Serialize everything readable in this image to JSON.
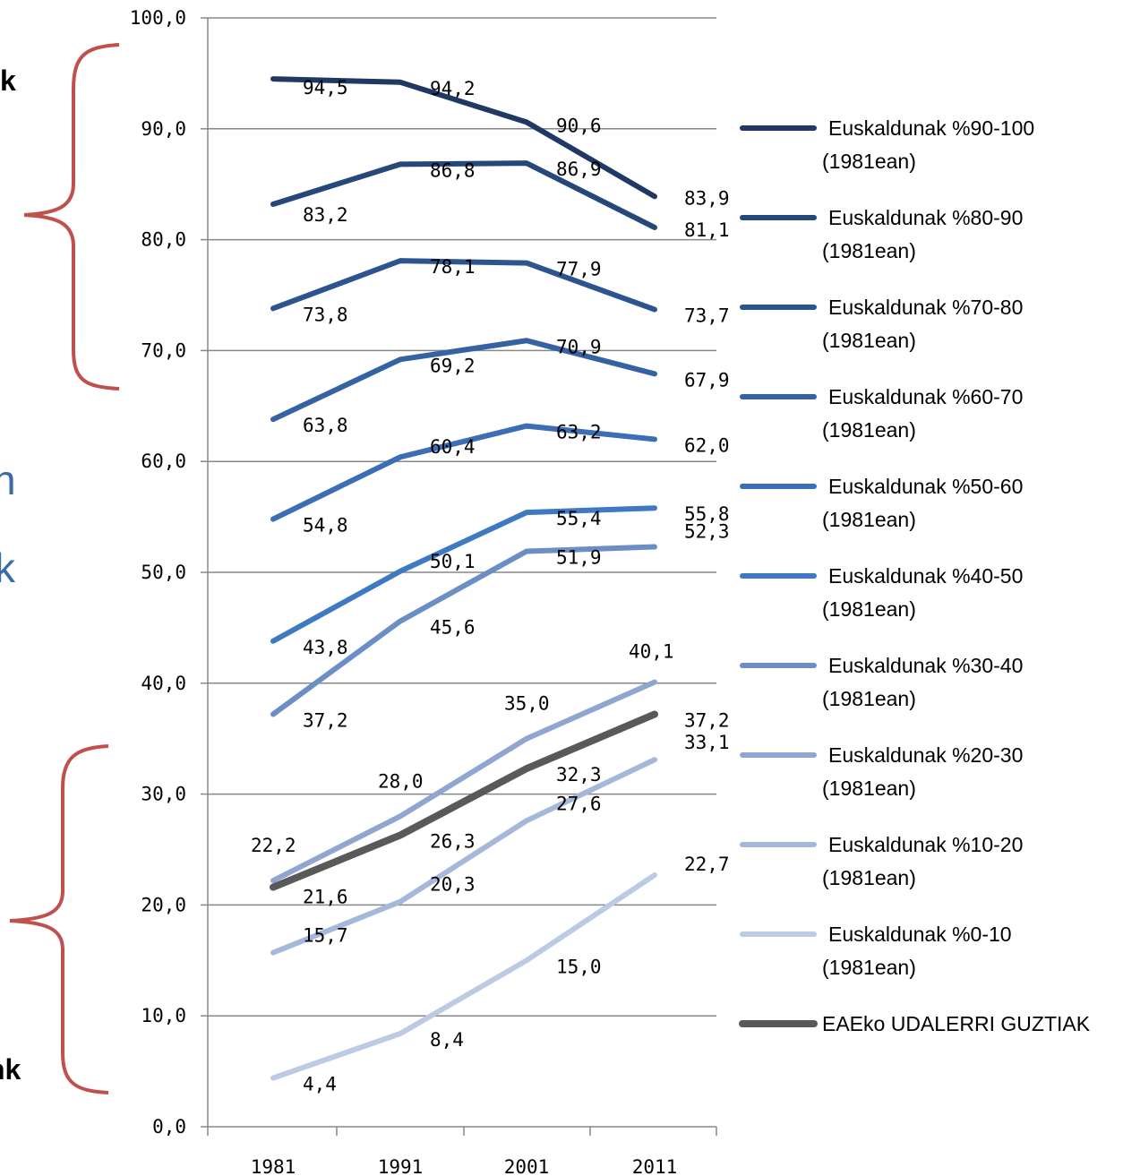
{
  "colors": {
    "brace": "#c0504d",
    "gridline": "#878787",
    "axis": "#878787",
    "cut_text_blue": "#3a6aa8"
  },
  "left_cut_text": {
    "top": "k",
    "middle_1": "n",
    "middle_2": "k",
    "bottom": "nk"
  },
  "chart_data": {
    "type": "line",
    "title": "",
    "xlabel": "",
    "ylabel": "",
    "x": [
      "1981",
      "1991",
      "2001",
      "2011"
    ],
    "ylim": [
      0,
      100
    ],
    "yticks": [
      "0,0",
      "10,0",
      "20,0",
      "30,0",
      "40,0",
      "50,0",
      "60,0",
      "70,0",
      "80,0",
      "90,0",
      "100,0"
    ],
    "grid": true,
    "legend_position": "right",
    "series": [
      {
        "name": "Euskaldunak %90-100",
        "name_line2": "(1981ean)",
        "color": "#1f3864",
        "values": [
          94.5,
          94.2,
          90.6,
          83.9
        ],
        "labels": [
          "94,5",
          "94,2",
          "90,6",
          "83,9"
        ]
      },
      {
        "name": "Euskaldunak %80-90",
        "name_line2": "(1981ean)",
        "color": "#254879",
        "values": [
          83.2,
          86.8,
          86.9,
          81.1
        ],
        "labels": [
          "83,2",
          "86,8",
          "86,9",
          "81,1"
        ]
      },
      {
        "name": "Euskaldunak %70-80",
        "name_line2": "(1981ean)",
        "color": "#2c5590",
        "values": [
          73.8,
          78.1,
          77.9,
          73.7
        ],
        "labels": [
          "73,8",
          "78,1",
          "77,9",
          "73,7"
        ]
      },
      {
        "name": "Euskaldunak %60-70",
        "name_line2": "(1981ean)",
        "color": "#3462a2",
        "values": [
          63.8,
          69.2,
          70.9,
          67.9
        ],
        "labels": [
          "63,8",
          "69,2",
          "70,9",
          "67,9"
        ]
      },
      {
        "name": "Euskaldunak %50-60",
        "name_line2": "(1981ean)",
        "color": "#3b6eb5",
        "values": [
          54.8,
          60.4,
          63.2,
          62.0
        ],
        "labels": [
          "54,8",
          "60,4",
          "63,2",
          "62,0"
        ]
      },
      {
        "name": "Euskaldunak %40-50",
        "name_line2": "(1981ean)",
        "color": "#3f79c2",
        "values": [
          43.8,
          50.1,
          55.4,
          55.8
        ],
        "labels": [
          "43,8",
          "50,1",
          "55,4",
          "55,8"
        ]
      },
      {
        "name": "Euskaldunak %30-40",
        "name_line2": "(1981ean)",
        "color": "#6b8fc5",
        "values": [
          37.2,
          45.6,
          51.9,
          52.3
        ],
        "labels": [
          "37,2",
          "45,6",
          "51,9",
          "52,3"
        ]
      },
      {
        "name": "Euskaldunak %20-30",
        "name_line2": "(1981ean)",
        "color": "#8ea6d0",
        "values": [
          22.2,
          28.0,
          35.0,
          40.1
        ],
        "labels": [
          "22,2",
          "28,0",
          "35,0",
          "40,1"
        ]
      },
      {
        "name": "Euskaldunak %10-20",
        "name_line2": "(1981ean)",
        "color": "#a6b8da",
        "values": [
          15.7,
          20.3,
          27.6,
          33.1
        ],
        "labels": [
          "15,7",
          "20,3",
          "27,6",
          "33,1"
        ]
      },
      {
        "name": "Euskaldunak %0-10",
        "name_line2": "(1981ean)",
        "color": "#bccae4",
        "values": [
          4.4,
          8.4,
          15.0,
          22.7
        ],
        "labels": [
          "4,4",
          "8,4",
          "15,0",
          "22,7"
        ]
      },
      {
        "name": "EAEko UDALERRI GUZTIAK",
        "name_line2": "",
        "color": "#595959",
        "values": [
          21.6,
          26.3,
          32.3,
          37.2
        ],
        "labels": [
          "21,6",
          "26,3",
          "32,3",
          "37,2"
        ]
      }
    ]
  }
}
